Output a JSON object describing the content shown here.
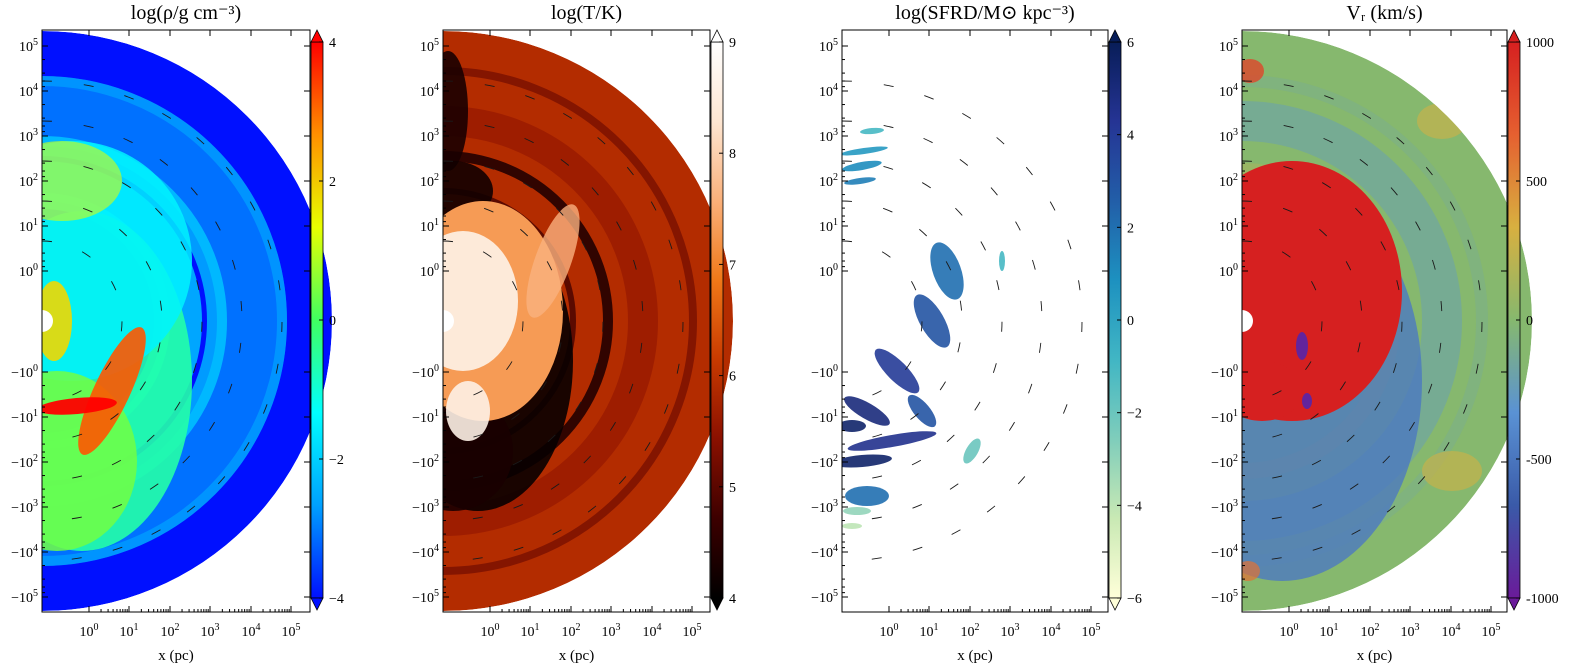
{
  "figure": {
    "x_axis_label": "x (pc)",
    "x_ticks": [
      "10^0",
      "10^1",
      "10^2",
      "10^3",
      "10^4",
      "10^5"
    ],
    "y_ticks": [
      "10^5",
      "10^4",
      "10^3",
      "10^2",
      "10^1",
      "10^0",
      "−10^0",
      "−10^1",
      "−10^2",
      "−10^3",
      "−10^4",
      "−10^5"
    ]
  },
  "chart_data": [
    {
      "type": "heatmap",
      "title": "log(ρ/g cm⁻³)",
      "xlabel": "x (pc)",
      "quantity": "log gas density",
      "colormap": [
        "#0010ff",
        "#00a0ff",
        "#00ffff",
        "#40ff60",
        "#e8ff00",
        "#ff9000",
        "#ff0000"
      ],
      "colorbar_ticks": [
        "4",
        "2",
        "0",
        "−2",
        "−4"
      ],
      "colorbar_range": [
        -4,
        4
      ],
      "colorbar_extend": "both",
      "background_value": -4
    },
    {
      "type": "heatmap",
      "title": "log(T/K)",
      "xlabel": "x (pc)",
      "quantity": "log temperature",
      "colormap": [
        "#000000",
        "#3c0000",
        "#8a1000",
        "#c83a00",
        "#f07818",
        "#fab07a",
        "#fde6d2",
        "#ffffff"
      ],
      "colorbar_ticks": [
        "9",
        "8",
        "7",
        "6",
        "5",
        "4"
      ],
      "colorbar_range": [
        4,
        9
      ],
      "colorbar_extend": "both",
      "background_value": 5.9
    },
    {
      "type": "heatmap",
      "title": "log(SFRD/M⊙ kpc⁻³)",
      "xlabel": "x (pc)",
      "quantity": "log star formation rate density",
      "colormap": [
        "#ffffd9",
        "#c9e9b4",
        "#7fcdbb",
        "#41b6c4",
        "#1d91c0",
        "#225ea8",
        "#253494",
        "#081d58"
      ],
      "colorbar_ticks": [
        "6",
        "4",
        "2",
        "0",
        "−2",
        "−4",
        "−6"
      ],
      "colorbar_range": [
        -6,
        6
      ],
      "colorbar_extend": "both",
      "background_value": null
    },
    {
      "type": "heatmap",
      "title": "Vᵣ (km/s)",
      "xlabel": "x (pc)",
      "quantity": "radial velocity",
      "colormap": [
        "#6a1b9a",
        "#3a5aa8",
        "#5a92d4",
        "#86b86e",
        "#d8b040",
        "#e56030",
        "#d62020"
      ],
      "colorbar_ticks": [
        "1000",
        "500",
        "0",
        "-500",
        "-1000"
      ],
      "colorbar_range": [
        -1000,
        1000
      ],
      "colorbar_extend": "both",
      "background_value": 0
    }
  ]
}
